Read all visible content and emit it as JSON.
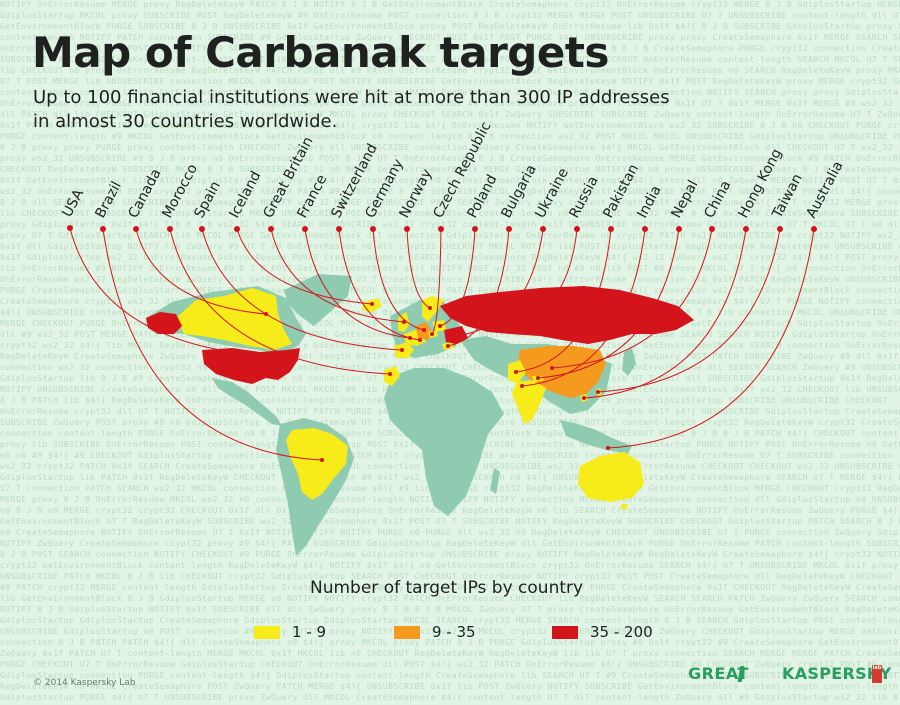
{
  "header": {
    "title": "Map of Carbanak targets",
    "subtitle_line1": "Up to 100 financial institutions were hit at more than 300 IP addresses",
    "subtitle_line2": "in almost 30 countries worldwide."
  },
  "countries": [
    {
      "name": "USA",
      "category": "35 - 200"
    },
    {
      "name": "Brazil",
      "category": "1 - 9"
    },
    {
      "name": "Canada",
      "category": "1 - 9"
    },
    {
      "name": "Morocco",
      "category": "1 - 9"
    },
    {
      "name": "Spain",
      "category": "1 - 9"
    },
    {
      "name": "Iceland",
      "category": "1 - 9"
    },
    {
      "name": "Great Britain",
      "category": "1 - 9"
    },
    {
      "name": "France",
      "category": "1 - 9"
    },
    {
      "name": "Switzerland",
      "category": "1 - 9"
    },
    {
      "name": "Germany",
      "category": "9 - 35"
    },
    {
      "name": "Norway",
      "category": "1 - 9"
    },
    {
      "name": "Czech Republic",
      "category": "1 - 9"
    },
    {
      "name": "Poland",
      "category": "1 - 9"
    },
    {
      "name": "Bulgaria",
      "category": "1 - 9"
    },
    {
      "name": "Ukraine",
      "category": "35 - 200"
    },
    {
      "name": "Russia",
      "category": "35 - 200"
    },
    {
      "name": "Pakistan",
      "category": "1 - 9"
    },
    {
      "name": "India",
      "category": "1 - 9"
    },
    {
      "name": "Nepal",
      "category": "1 - 9"
    },
    {
      "name": "China",
      "category": "9 - 35"
    },
    {
      "name": "Hong Kong",
      "category": "1 - 9"
    },
    {
      "name": "Taiwan",
      "category": "1 - 9"
    },
    {
      "name": "Australia",
      "category": "1 - 9"
    }
  ],
  "legend": {
    "title": "Number of target IPs by country",
    "items": [
      {
        "label": "1 - 9",
        "color": "#f7ec1a"
      },
      {
        "label": "9 - 35",
        "color": "#f59a1e"
      },
      {
        "label": "35 - 200",
        "color": "#d4141b"
      }
    ]
  },
  "colors": {
    "background": "#e2f4e6",
    "land": "#8fcbb0",
    "line": "#d4141b",
    "accent": "#2a9d62"
  },
  "footer": {
    "copyright": "© 2014 Kaspersky Lab",
    "logo_great": "GREAT",
    "logo_kaspersky": "KASPERSKY",
    "logo_lab": "lab"
  }
}
